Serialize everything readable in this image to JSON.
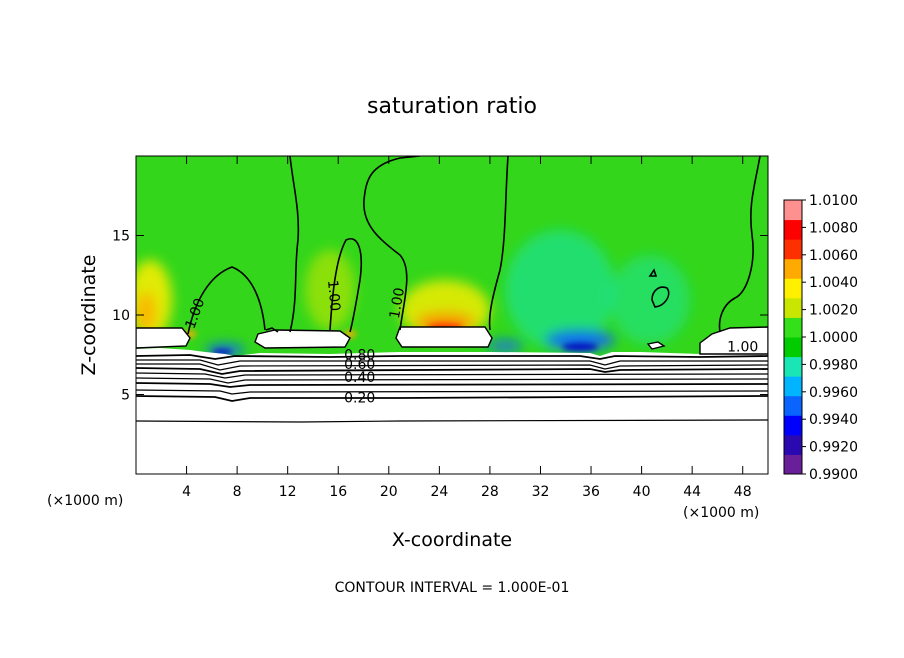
{
  "chart_data": {
    "type": "heatmap",
    "title": "saturation ratio",
    "xlabel": "X-coordinate",
    "ylabel": "Z-coordinate",
    "x_unit_left": "(×1000 m)",
    "x_unit_right": "(×1000 m)",
    "footer": "CONTOUR INTERVAL = 1.000E-01",
    "xlim": [
      0,
      50
    ],
    "ylim": [
      0,
      20
    ],
    "x_ticks": [
      4,
      8,
      12,
      16,
      20,
      24,
      28,
      32,
      36,
      40,
      44,
      48
    ],
    "y_ticks": [
      5,
      10,
      15
    ],
    "colorbar": {
      "min": 0.99,
      "max": 1.01,
      "labels": [
        "1.0100",
        "1.0080",
        "1.0060",
        "1.0040",
        "1.0020",
        "1.0000",
        "0.9980",
        "0.9960",
        "0.9940",
        "0.9920",
        "0.9900"
      ],
      "colors": [
        "#6a1f9a",
        "#2a0ab0",
        "#0000ff",
        "#0a64ff",
        "#00b4ff",
        "#19e6b4",
        "#00cc00",
        "#33e01a",
        "#c8e600",
        "#fff000",
        "#ffaa00",
        "#ff3000",
        "#ff0000",
        "#ff9090"
      ]
    },
    "contour_labels": [
      {
        "text": "1.00",
        "x": 5.0,
        "y": 10.0,
        "rot": -70
      },
      {
        "text": "1.00",
        "x": 15.3,
        "y": 11.2,
        "rot": 85
      },
      {
        "text": "1.00",
        "x": 21.0,
        "y": 10.7,
        "rot": -80
      },
      {
        "text": "1.00",
        "x": 48.0,
        "y": 7.7,
        "rot": 0
      },
      {
        "text": "0.80",
        "x": 17.7,
        "y": 7.2,
        "rot": 0
      },
      {
        "text": "0.60",
        "x": 17.7,
        "y": 6.6,
        "rot": 0
      },
      {
        "text": "0.40",
        "x": 17.7,
        "y": 5.8,
        "rot": 0
      },
      {
        "text": "0.20",
        "x": 17.7,
        "y": 4.5,
        "rot": 0
      }
    ]
  }
}
